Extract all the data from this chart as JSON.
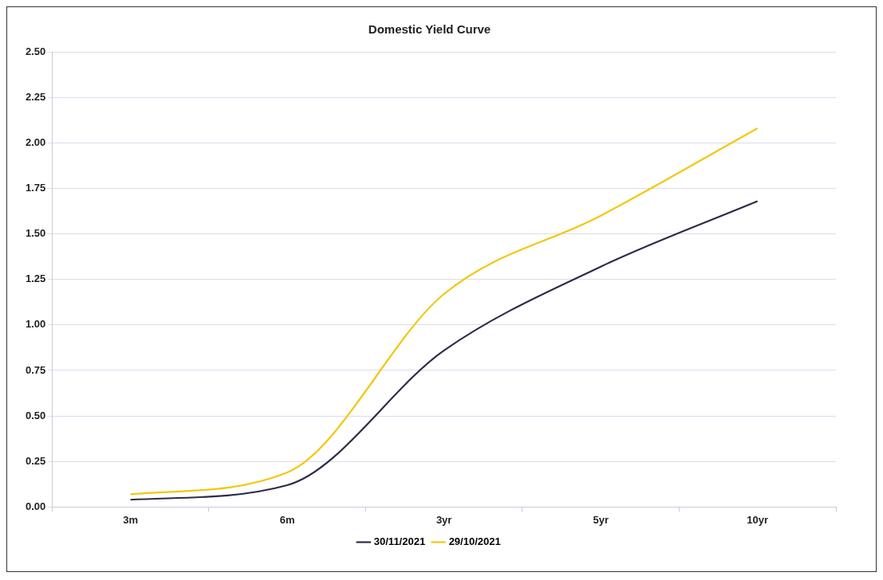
{
  "chart_data": {
    "type": "line",
    "title": "Domestic Yield Curve",
    "categories": [
      "3m",
      "6m",
      "3yr",
      "5yr",
      "10yr"
    ],
    "series": [
      {
        "name": "30/11/2021",
        "color": "#2b2d4a",
        "values": [
          0.04,
          0.12,
          0.86,
          1.32,
          1.68
        ]
      },
      {
        "name": "29/10/2021",
        "color": "#f2c80f",
        "values": [
          0.07,
          0.19,
          1.17,
          1.6,
          2.08
        ]
      }
    ],
    "ylim": [
      0,
      2.5
    ],
    "yticks": [
      {
        "value": 0,
        "label": "0.00"
      },
      {
        "value": 0.25,
        "label": "0.25"
      },
      {
        "value": 0.5,
        "label": "0.50"
      },
      {
        "value": 0.75,
        "label": "0.75"
      },
      {
        "value": 1,
        "label": "1.00"
      },
      {
        "value": 1.25,
        "label": "1.25"
      },
      {
        "value": 1.5,
        "label": "1.50"
      },
      {
        "value": 1.75,
        "label": "1.75"
      },
      {
        "value": 2,
        "label": "2.00"
      },
      {
        "value": 2.25,
        "label": "2.25"
      },
      {
        "value": 2.5,
        "label": "2.50"
      }
    ],
    "grid": "y",
    "legend": "bottom",
    "marker": "none",
    "line_style": "solid"
  }
}
